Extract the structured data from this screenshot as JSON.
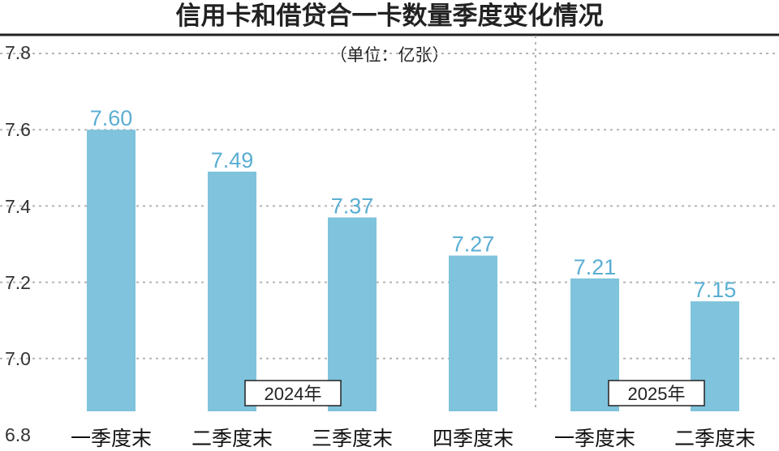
{
  "colors": {
    "bar": "#7fc3dc",
    "label": "#5aaed3",
    "grid": "#b5b5b5",
    "rule": "#222222"
  },
  "chart_data": {
    "type": "bar",
    "title": "信用卡和借贷合一卡数量季度变化情况",
    "unit_note": "（单位：亿张）",
    "categories": [
      "一季度末",
      "二季度末",
      "三季度末",
      "四季度末",
      "一季度末",
      "二季度末"
    ],
    "values": [
      7.6,
      7.49,
      7.37,
      7.27,
      7.21,
      7.15
    ],
    "value_labels": [
      "7.60",
      "7.49",
      "7.37",
      "7.27",
      "7.21",
      "7.15"
    ],
    "groups": [
      {
        "label": "2024年",
        "categories": [
          0,
          1,
          2,
          3
        ]
      },
      {
        "label": "2025年",
        "categories": [
          4,
          5
        ]
      }
    ],
    "yticks": [
      "7.8",
      "7.6",
      "7.4",
      "7.2",
      "7.0",
      "6.8"
    ],
    "ylim": [
      6.8,
      7.8
    ],
    "grid": true,
    "legend": "none"
  }
}
